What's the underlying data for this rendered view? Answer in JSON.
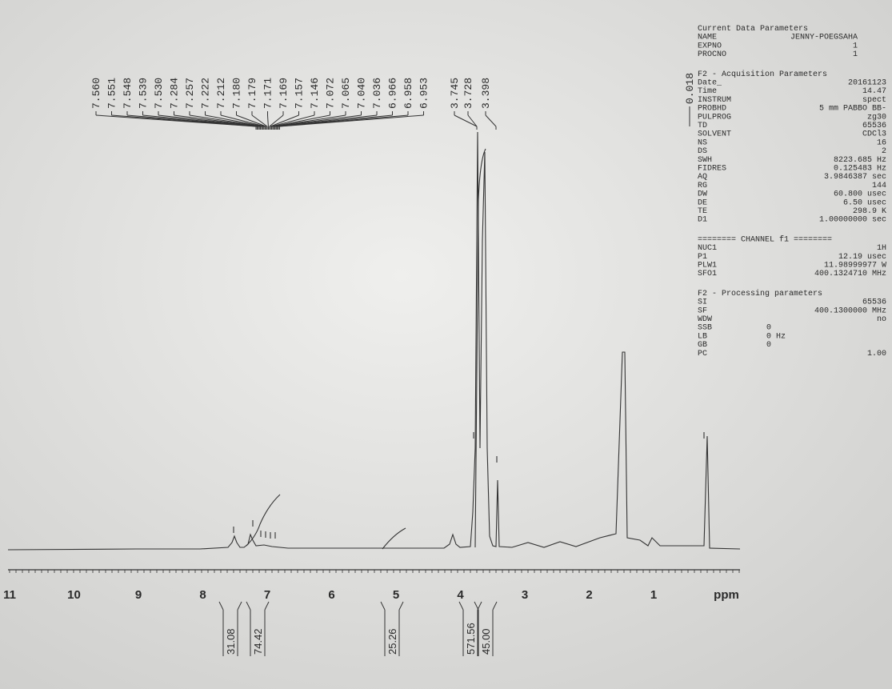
{
  "peak_labels": [
    "7.560",
    "7.551",
    "7.548",
    "7.539",
    "7.530",
    "7.284",
    "7.257",
    "7.222",
    "7.212",
    "7.180",
    "7.179",
    "7.171",
    "7.169",
    "7.157",
    "7.146",
    "7.072",
    "7.065",
    "7.040",
    "7.036",
    "6.966",
    "6.958",
    "6.953",
    "3.745",
    "3.728",
    "3.398"
  ],
  "reference_peak": "0.018",
  "parameters": [
    {
      "title": "Current Data Parameters",
      "rows": [
        [
          "NAME",
          "JENNY-POEGSAHA"
        ],
        [
          "EXPNO",
          "1"
        ],
        [
          "PROCNO",
          "1"
        ]
      ]
    },
    {
      "title": "F2 - Acquisition Parameters",
      "rows": [
        [
          "Date_",
          "20161123"
        ],
        [
          "Time",
          "14.47"
        ],
        [
          "INSTRUM",
          "spect"
        ],
        [
          "PROBHD",
          "5 mm PABBO BB-"
        ],
        [
          "PULPROG",
          "zg30"
        ],
        [
          "TD",
          "65536"
        ],
        [
          "SOLVENT",
          "CDCl3"
        ],
        [
          "NS",
          "16"
        ],
        [
          "DS",
          "2"
        ],
        [
          "SWH",
          "8223.685 Hz"
        ],
        [
          "FIDRES",
          "0.125483 Hz"
        ],
        [
          "AQ",
          "3.9846387 sec"
        ],
        [
          "RG",
          "144"
        ],
        [
          "DW",
          "60.800 usec"
        ],
        [
          "DE",
          "6.50 usec"
        ],
        [
          "TE",
          "298.9 K"
        ],
        [
          "D1",
          "1.00000000 sec"
        ]
      ]
    },
    {
      "title": "======== CHANNEL f1 ========",
      "rows": [
        [
          "NUC1",
          "1H"
        ],
        [
          "P1",
          "12.19 usec"
        ],
        [
          "PLW1",
          "11.98999977 W"
        ],
        [
          "SFO1",
          "400.1324710 MHz"
        ]
      ]
    },
    {
      "title": "F2 - Processing parameters",
      "rows": [
        [
          "SI",
          "65536"
        ],
        [
          "SF",
          "400.1300000 MHz"
        ],
        [
          "WDW",
          "no"
        ],
        [
          "SSB",
          "0"
        ],
        [
          "LB",
          "0 Hz"
        ],
        [
          "GB",
          "0"
        ],
        [
          "PC",
          "1.00"
        ]
      ]
    }
  ],
  "axis": {
    "labels": [
      "11",
      "10",
      "9",
      "8",
      "7",
      "6",
      "5",
      "4",
      "3",
      "2",
      "1"
    ],
    "unit": "ppm"
  },
  "integrals": [
    "31.08",
    "74.42",
    "25.26",
    "571.56",
    "45.00"
  ]
}
